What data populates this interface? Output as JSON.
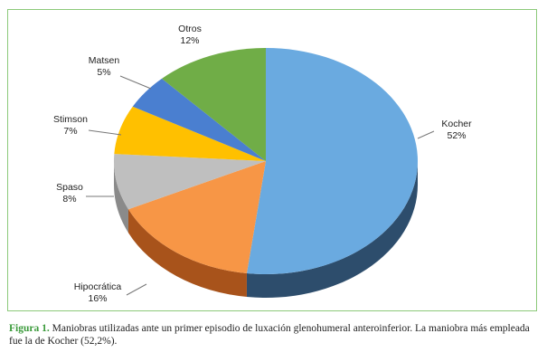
{
  "chart_data": {
    "type": "pie",
    "style": "3d",
    "start": "top, clockwise",
    "slices": [
      {
        "label": "Kocher",
        "value": 52,
        "display": "52%",
        "color": "#6aaae0",
        "side": "#2d4d6c"
      },
      {
        "label": "Hipocrática",
        "value": 16,
        "display": "16%",
        "color": "#f79646",
        "side": "#a8531b"
      },
      {
        "label": "Spaso",
        "value": 8,
        "display": "8%",
        "color": "#bfbfbf",
        "side": "#8a8a8a"
      },
      {
        "label": "Stimson",
        "value": 7,
        "display": "7%",
        "color": "#ffc000",
        "side": "#b88a00"
      },
      {
        "label": "Matsen",
        "value": 5,
        "display": "5%",
        "color": "#4a7fd0",
        "side": "#2c4f88"
      },
      {
        "label": "Otros",
        "value": 12,
        "display": "12%",
        "color": "#70ad47",
        "side": "#4a7a2c"
      }
    ]
  },
  "caption": {
    "figure_label": "Figura 1.",
    "text": " Maniobras utilizadas ante un primer episodio de luxación glenohumeral anteroinferior. La maniobra más empleada fue la de Kocher (52,2%)."
  }
}
